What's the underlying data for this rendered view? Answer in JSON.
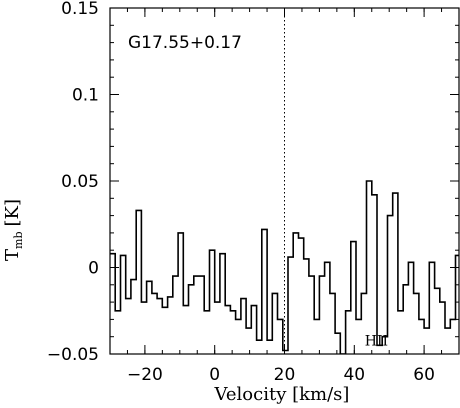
{
  "chart_data": {
    "type": "line",
    "step": true,
    "source_label": "G17.55+0.17",
    "xlabel": "Velocity [km/s]",
    "ylabel_main": "T",
    "ylabel_sub": "mb",
    "ylabel_unit": "[K]",
    "xlim": [
      -30,
      70
    ],
    "ylim": [
      -0.05,
      0.15
    ],
    "xticks": [
      -20,
      0,
      20,
      40,
      60
    ],
    "xtick_labels": [
      "−20",
      "0",
      "20",
      "40",
      "60"
    ],
    "yticks": [
      -0.05,
      0,
      0.05,
      0.1,
      0.15
    ],
    "ytick_labels": [
      "−0.05",
      "0",
      "0.05",
      "0.1",
      "0.15"
    ],
    "vline_velocity": 20,
    "annotation": {
      "text": "HII",
      "x": 43,
      "y": -0.045
    },
    "series": [
      {
        "x": [
          -30,
          -28.5,
          -27,
          -25.5,
          -24,
          -22.5,
          -21,
          -19.5,
          -18,
          -16.5,
          -15,
          -13.5,
          -12,
          -10.5,
          -9,
          -7.5,
          -6,
          -4.5,
          -3,
          -1.5,
          0,
          1.5,
          3,
          4.5,
          6,
          7.5,
          9,
          10.5,
          12,
          13.5,
          15,
          16.5,
          18,
          19.5,
          21,
          22.5,
          24,
          25.5,
          27,
          28.5,
          30,
          31.5,
          33,
          34.5,
          36,
          37.5,
          39,
          40.5,
          42,
          43.5,
          45,
          46.5,
          48,
          49.5,
          51,
          52.5,
          54,
          55.5,
          57,
          58.5,
          60,
          61.5,
          63,
          64.5,
          66,
          67.5,
          69
        ],
        "y": [
          0.008,
          -0.025,
          0.007,
          -0.018,
          -0.007,
          0.033,
          -0.02,
          -0.008,
          -0.015,
          -0.018,
          -0.023,
          -0.017,
          -0.005,
          0.02,
          -0.022,
          -0.01,
          -0.005,
          -0.005,
          -0.025,
          0.01,
          -0.02,
          0.008,
          -0.022,
          -0.025,
          -0.03,
          -0.018,
          -0.035,
          -0.022,
          -0.042,
          0.022,
          -0.042,
          -0.015,
          -0.03,
          -0.048,
          0.006,
          0.02,
          0.017,
          0.005,
          -0.005,
          -0.03,
          -0.005,
          0.003,
          -0.015,
          -0.038,
          -0.05,
          -0.025,
          0.015,
          -0.03,
          -0.015,
          0.05,
          0.042,
          -0.045,
          -0.04,
          0.03,
          0.043,
          -0.025,
          -0.01,
          0.003,
          -0.015,
          -0.03,
          -0.035,
          0.003,
          -0.012,
          -0.02,
          -0.035,
          -0.03,
          0.007
        ]
      }
    ]
  }
}
